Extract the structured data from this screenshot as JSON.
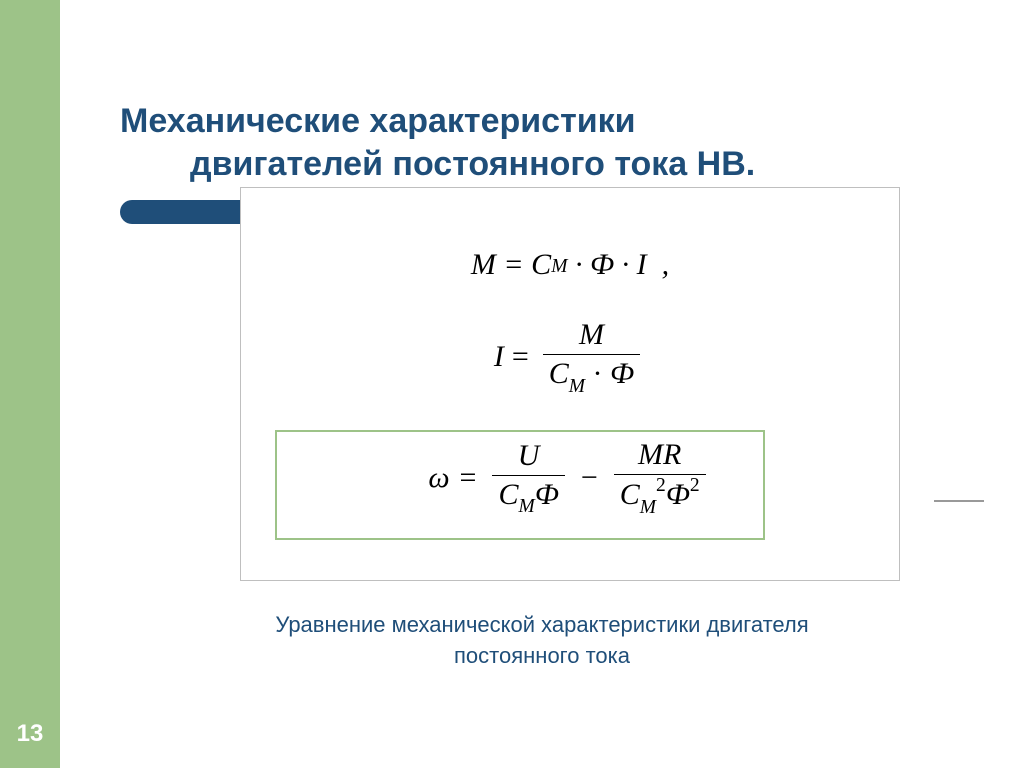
{
  "page_number": "13",
  "colors": {
    "sidebar_bg": "#9dc388",
    "title_color": "#1f4e79",
    "divider_bg": "#1f4e79",
    "box_border": "#bfbfbf",
    "highlight_border": "#9dc388",
    "page_bg": "#ffffff"
  },
  "title": {
    "line1": "Механические характеристики",
    "line2": "двигателей постоянного тока НВ."
  },
  "equations": {
    "eq1_text": "M = C_М · Ф · I  ,",
    "eq2": {
      "lhs": "I",
      "num": "M",
      "den_C": "C",
      "den_sub": "М",
      "den_Phi": "Ф"
    },
    "eq3": {
      "lhs": "ω",
      "term1_num": "U",
      "term1_den_C": "C",
      "term1_den_sub": "М",
      "term1_den_Phi": "Ф",
      "term2_num_M": "M",
      "term2_num_R": "R",
      "term2_den_C": "C",
      "term2_den_sub": "М",
      "term2_den_Phi": "Ф"
    }
  },
  "caption": {
    "line1": "Уравнение механической характеристики двигателя",
    "line2": "постоянного тока"
  },
  "typography": {
    "title_fontsize": 34,
    "caption_fontsize": 22,
    "equation_fontsize": 30
  }
}
